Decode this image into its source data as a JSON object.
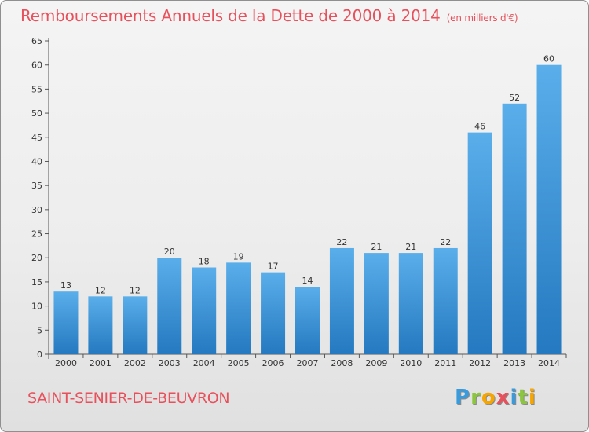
{
  "chart_data": {
    "type": "bar",
    "title": "Remboursements Annuels de la Dette de 2000 à 2014",
    "unit_note": "(en milliers d'€)",
    "categories": [
      "2000",
      "2001",
      "2002",
      "2003",
      "2004",
      "2005",
      "2006",
      "2007",
      "2008",
      "2009",
      "2010",
      "2011",
      "2012",
      "2013",
      "2014"
    ],
    "values": [
      13,
      12,
      12,
      20,
      18,
      19,
      17,
      14,
      22,
      21,
      21,
      22,
      46,
      52,
      60
    ],
    "yticks": [
      0,
      5,
      10,
      15,
      20,
      25,
      30,
      35,
      40,
      45,
      50,
      55,
      60,
      65
    ],
    "ylim": [
      0,
      65
    ],
    "grid": false,
    "bar_color_top": "#5aaeea",
    "bar_color_bottom": "#2479c0"
  },
  "footer": {
    "commune": "SAINT-SENIER-DE-BEUVRON",
    "logo_letters": [
      {
        "ch": "P",
        "color": "#3a9bdc"
      },
      {
        "ch": "r",
        "color": "#8cc63f"
      },
      {
        "ch": "o",
        "color": "#f7a600"
      },
      {
        "ch": "x",
        "color": "#e8505b"
      },
      {
        "ch": "i",
        "color": "#3a9bdc"
      },
      {
        "ch": "t",
        "color": "#8cc63f"
      },
      {
        "ch": "i",
        "color": "#f7a600"
      }
    ]
  }
}
